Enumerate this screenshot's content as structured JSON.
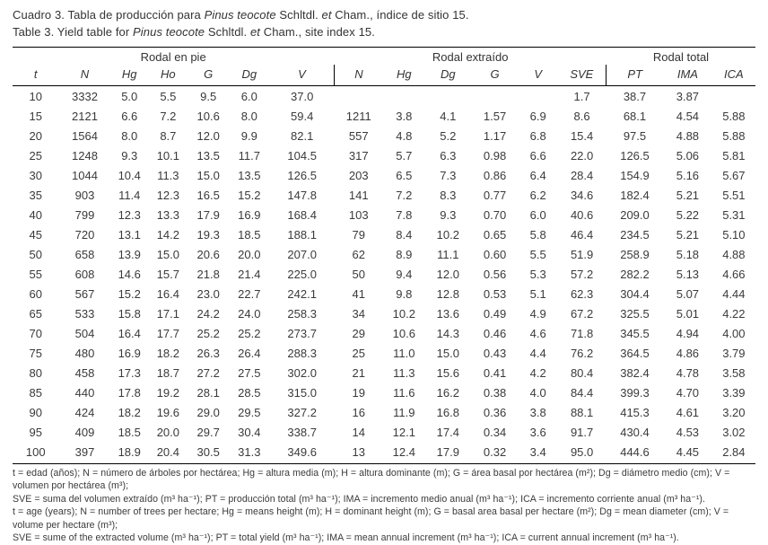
{
  "captions": [
    {
      "segments": [
        {
          "t": "Cuadro 3. Tabla de producción para ",
          "i": false
        },
        {
          "t": "Pinus teocote",
          "i": true
        },
        {
          "t": " Schltdl. ",
          "i": false
        },
        {
          "t": "et",
          "i": true
        },
        {
          "t": " Cham., índice de sitio 15.",
          "i": false
        }
      ]
    },
    {
      "segments": [
        {
          "t": "Table 3. Yield table for ",
          "i": false
        },
        {
          "t": "Pinus teocote",
          "i": true
        },
        {
          "t": " Schltdl. ",
          "i": false
        },
        {
          "t": "et",
          "i": true
        },
        {
          "t": " Cham., site index 15.",
          "i": false
        }
      ]
    }
  ],
  "table": {
    "groups": [
      {
        "label": "Rodal en pie",
        "span": 7
      },
      {
        "label": "Rodal extraído",
        "span": 6
      },
      {
        "label": "Rodal total",
        "span": 3
      }
    ],
    "columns": [
      "t",
      "N",
      "Hg",
      "Ho",
      "G",
      "Dg",
      "V",
      "N",
      "Hg",
      "Dg",
      "G",
      "V",
      "SVE",
      "PT",
      "IMA",
      "ICA"
    ],
    "rows": [
      [
        "10",
        "3332",
        "5.0",
        "5.5",
        "9.5",
        "6.0",
        "37.0",
        "",
        "",
        "",
        "",
        "",
        "1.7",
        "38.7",
        "3.87",
        ""
      ],
      [
        "15",
        "2121",
        "6.6",
        "7.2",
        "10.6",
        "8.0",
        "59.4",
        "1211",
        "3.8",
        "4.1",
        "1.57",
        "6.9",
        "8.6",
        "68.1",
        "4.54",
        "5.88"
      ],
      [
        "20",
        "1564",
        "8.0",
        "8.7",
        "12.0",
        "9.9",
        "82.1",
        "557",
        "4.8",
        "5.2",
        "1.17",
        "6.8",
        "15.4",
        "97.5",
        "4.88",
        "5.88"
      ],
      [
        "25",
        "1248",
        "9.3",
        "10.1",
        "13.5",
        "11.7",
        "104.5",
        "317",
        "5.7",
        "6.3",
        "0.98",
        "6.6",
        "22.0",
        "126.5",
        "5.06",
        "5.81"
      ],
      [
        "30",
        "1044",
        "10.4",
        "11.3",
        "15.0",
        "13.5",
        "126.5",
        "203",
        "6.5",
        "7.3",
        "0.86",
        "6.4",
        "28.4",
        "154.9",
        "5.16",
        "5.67"
      ],
      [
        "35",
        "903",
        "11.4",
        "12.3",
        "16.5",
        "15.2",
        "147.8",
        "141",
        "7.2",
        "8.3",
        "0.77",
        "6.2",
        "34.6",
        "182.4",
        "5.21",
        "5.51"
      ],
      [
        "40",
        "799",
        "12.3",
        "13.3",
        "17.9",
        "16.9",
        "168.4",
        "103",
        "7.8",
        "9.3",
        "0.70",
        "6.0",
        "40.6",
        "209.0",
        "5.22",
        "5.31"
      ],
      [
        "45",
        "720",
        "13.1",
        "14.2",
        "19.3",
        "18.5",
        "188.1",
        "79",
        "8.4",
        "10.2",
        "0.65",
        "5.8",
        "46.4",
        "234.5",
        "5.21",
        "5.10"
      ],
      [
        "50",
        "658",
        "13.9",
        "15.0",
        "20.6",
        "20.0",
        "207.0",
        "62",
        "8.9",
        "11.1",
        "0.60",
        "5.5",
        "51.9",
        "258.9",
        "5.18",
        "4.88"
      ],
      [
        "55",
        "608",
        "14.6",
        "15.7",
        "21.8",
        "21.4",
        "225.0",
        "50",
        "9.4",
        "12.0",
        "0.56",
        "5.3",
        "57.2",
        "282.2",
        "5.13",
        "4.66"
      ],
      [
        "60",
        "567",
        "15.2",
        "16.4",
        "23.0",
        "22.7",
        "242.1",
        "41",
        "9.8",
        "12.8",
        "0.53",
        "5.1",
        "62.3",
        "304.4",
        "5.07",
        "4.44"
      ],
      [
        "65",
        "533",
        "15.8",
        "17.1",
        "24.2",
        "24.0",
        "258.3",
        "34",
        "10.2",
        "13.6",
        "0.49",
        "4.9",
        "67.2",
        "325.5",
        "5.01",
        "4.22"
      ],
      [
        "70",
        "504",
        "16.4",
        "17.7",
        "25.2",
        "25.2",
        "273.7",
        "29",
        "10.6",
        "14.3",
        "0.46",
        "4.6",
        "71.8",
        "345.5",
        "4.94",
        "4.00"
      ],
      [
        "75",
        "480",
        "16.9",
        "18.2",
        "26.3",
        "26.4",
        "288.3",
        "25",
        "11.0",
        "15.0",
        "0.43",
        "4.4",
        "76.2",
        "364.5",
        "4.86",
        "3.79"
      ],
      [
        "80",
        "458",
        "17.3",
        "18.7",
        "27.2",
        "27.5",
        "302.0",
        "21",
        "11.3",
        "15.6",
        "0.41",
        "4.2",
        "80.4",
        "382.4",
        "4.78",
        "3.58"
      ],
      [
        "85",
        "440",
        "17.8",
        "19.2",
        "28.1",
        "28.5",
        "315.0",
        "19",
        "11.6",
        "16.2",
        "0.38",
        "4.0",
        "84.4",
        "399.3",
        "4.70",
        "3.39"
      ],
      [
        "90",
        "424",
        "18.2",
        "19.6",
        "29.0",
        "29.5",
        "327.2",
        "16",
        "11.9",
        "16.8",
        "0.36",
        "3.8",
        "88.1",
        "415.3",
        "4.61",
        "3.20"
      ],
      [
        "95",
        "409",
        "18.5",
        "20.0",
        "29.7",
        "30.4",
        "338.7",
        "14",
        "12.1",
        "17.4",
        "0.34",
        "3.6",
        "91.7",
        "430.4",
        "4.53",
        "3.02"
      ],
      [
        "100",
        "397",
        "18.9",
        "20.4",
        "30.5",
        "31.3",
        "349.6",
        "13",
        "12.4",
        "17.9",
        "0.32",
        "3.4",
        "95.0",
        "444.6",
        "4.45",
        "2.84"
      ]
    ]
  },
  "footnotes": [
    "t = edad (años); N = número de árboles por hectárea; Hg = altura media (m); H = altura dominante (m); G = área basal por hectárea (m²); Dg = diámetro medio (cm); V = volumen por hectárea (m³);",
    "SVE = suma del volumen extraído (m³ ha⁻¹); PT = producción total (m³ ha⁻¹); IMA = incremento medio anual (m³ ha⁻¹); ICA = incremento corriente anual (m³ ha⁻¹).",
    "t = age (years); N = number of trees per hectare; Hg = means height (m); H = dominant height (m); G = basal area basal per hectare (m²); Dg = mean diameter (cm); V = volume per hectare (m³);",
    "SVE =  sume of the extracted volume (m³ ha⁻¹); PT = total yield  (m³ ha⁻¹); IMA = mean annual increment (m³ ha⁻¹); ICA = current annual increment (m³ ha⁻¹)."
  ]
}
